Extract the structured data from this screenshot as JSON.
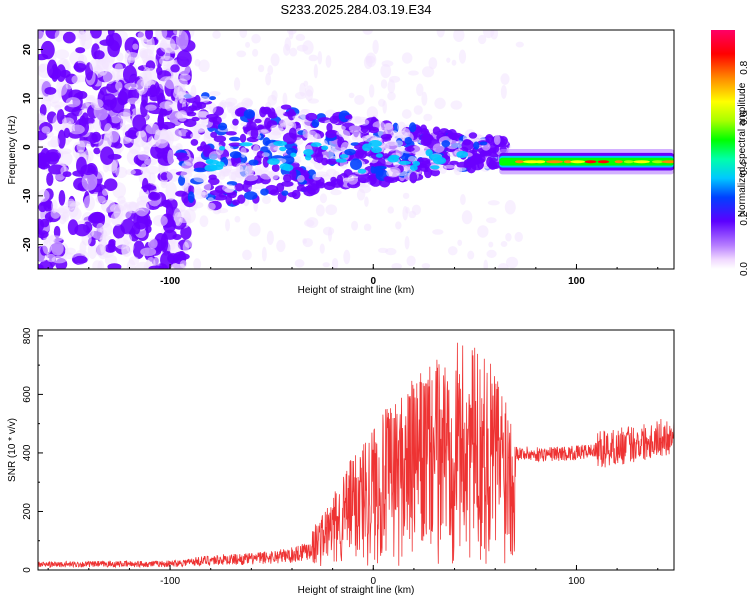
{
  "title": "S233.2025.284.03.19.E34",
  "chart_data": [
    {
      "type": "heatmap",
      "title": "",
      "xlabel": "Height of straight line (km)",
      "ylabel": "Frequency (Hz)",
      "xlim": [
        -165,
        148
      ],
      "ylim": [
        -25,
        24
      ],
      "x_ticks": [
        -100,
        0,
        100
      ],
      "y_ticks": [
        -20,
        -10,
        0,
        10,
        20
      ],
      "colorbar": {
        "label": "Normalized spectral amplitude",
        "range": [
          0.0,
          0.95
        ],
        "ticks": [
          0.0,
          0.2,
          0.4,
          0.6,
          0.8
        ]
      },
      "features": [
        {
          "x_range": [
            -165,
            -95
          ],
          "freq_range": [
            -25,
            24
          ],
          "amplitude": 0.12,
          "description": "broadband noise"
        },
        {
          "x_range": [
            -95,
            60
          ],
          "freq_range": [
            -12,
            10
          ],
          "amplitude": 0.3,
          "description": "scattered signal converging"
        },
        {
          "x_range": [
            60,
            148
          ],
          "freq_center": -3,
          "amplitude": 0.9,
          "description": "narrow line"
        }
      ]
    },
    {
      "type": "line",
      "title": "",
      "xlabel": "Height of straight line (km)",
      "ylabel": "SNR (10 * v/v)",
      "xlim": [
        -165,
        148
      ],
      "ylim": [
        0,
        820
      ],
      "x_ticks": [
        -100,
        0,
        100
      ],
      "y_ticks": [
        0,
        200,
        400,
        600,
        800
      ],
      "series": [
        {
          "color": "#ee3333",
          "envelope": {
            "x": [
              -165,
              -100,
              -80,
              -60,
              -40,
              -30,
              -20,
              -10,
              0,
              10,
              20,
              30,
              40,
              50,
              60,
              70,
              80,
              100,
              120,
              140,
              148
            ],
            "y": [
              22,
              25,
              40,
              45,
              60,
              90,
              160,
              260,
              330,
              380,
              430,
              470,
              520,
              500,
              460,
              400,
              395,
              400,
              420,
              450,
              460
            ]
          }
        }
      ]
    }
  ]
}
